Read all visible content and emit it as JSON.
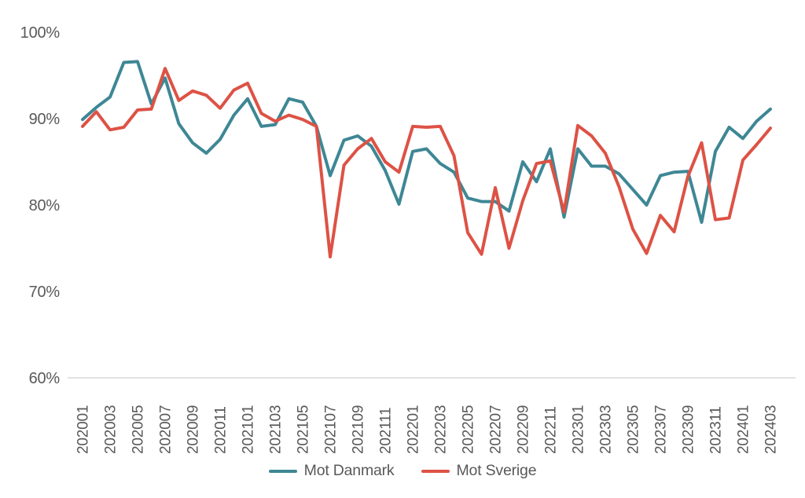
{
  "chart_data": {
    "type": "line",
    "title": "",
    "xlabel": "",
    "ylabel": "",
    "ylim": [
      60,
      100
    ],
    "grid": "baseline-only-at-60",
    "legend_position": "bottom-center",
    "colors": {
      "axis_line": "#d9d9d9",
      "tick_text": "#595959",
      "background": "#ffffff"
    },
    "yticks": [
      {
        "value": 100,
        "label": "100%"
      },
      {
        "value": 90,
        "label": "90%"
      },
      {
        "value": 80,
        "label": "80%"
      },
      {
        "value": 70,
        "label": "70%"
      },
      {
        "value": 60,
        "label": "60%"
      }
    ],
    "x": [
      "202001",
      "202002",
      "202003",
      "202004",
      "202005",
      "202006",
      "202007",
      "202008",
      "202009",
      "202010",
      "202011",
      "202012",
      "202101",
      "202102",
      "202103",
      "202104",
      "202105",
      "202106",
      "202107",
      "202108",
      "202109",
      "202110",
      "202111",
      "202112",
      "202201",
      "202202",
      "202203",
      "202204",
      "202205",
      "202206",
      "202207",
      "202208",
      "202209",
      "202210",
      "202211",
      "202212",
      "202301",
      "202302",
      "202303",
      "202304",
      "202305",
      "202306",
      "202307",
      "202308",
      "202309",
      "202310",
      "202311",
      "202312",
      "202401",
      "202402",
      "202403"
    ],
    "x_tick_every": 2,
    "x_tick_labels": [
      "202001",
      "202003",
      "202005",
      "202007",
      "202009",
      "202011",
      "202101",
      "202103",
      "202105",
      "202107",
      "202109",
      "202111",
      "202201",
      "202203",
      "202205",
      "202207",
      "202209",
      "202211",
      "202301",
      "202303",
      "202305",
      "202307",
      "202309",
      "202311",
      "202401",
      "202403"
    ],
    "series": [
      {
        "name": "Mot Danmark",
        "color": "#3e8795",
        "values": [
          89.9,
          91.3,
          92.5,
          96.5,
          96.6,
          91.7,
          94.7,
          89.4,
          87.2,
          86.0,
          87.6,
          90.4,
          92.3,
          89.1,
          89.3,
          92.3,
          91.9,
          89.1,
          83.4,
          87.5,
          88.0,
          86.8,
          84.0,
          80.1,
          86.2,
          86.5,
          84.8,
          83.8,
          80.8,
          80.4,
          80.4,
          79.3,
          85.0,
          82.7,
          86.5,
          78.6,
          86.5,
          84.5,
          84.5,
          83.6,
          81.8,
          80.0,
          83.4,
          83.8,
          83.9,
          78.0,
          86.2,
          89.0,
          87.7,
          89.7,
          91.1
        ]
      },
      {
        "name": "Mot Sverige",
        "color": "#dd5245",
        "values": [
          89.1,
          90.8,
          88.7,
          89.0,
          91.0,
          91.1,
          95.8,
          92.1,
          93.2,
          92.7,
          91.2,
          93.3,
          94.1,
          90.6,
          89.7,
          90.4,
          89.9,
          89.1,
          74.0,
          84.6,
          86.5,
          87.7,
          85.0,
          83.8,
          89.1,
          89.0,
          89.1,
          85.7,
          76.8,
          74.3,
          82.0,
          75.0,
          80.5,
          84.8,
          85.1,
          79.2,
          89.2,
          88.0,
          86.0,
          82.1,
          77.2,
          74.4,
          78.8,
          76.9,
          83.3,
          87.2,
          78.3,
          78.5,
          85.2,
          87.0,
          88.9
        ]
      }
    ]
  },
  "legend": {
    "items": [
      {
        "label": "Mot Danmark"
      },
      {
        "label": "Mot Sverige"
      }
    ]
  }
}
